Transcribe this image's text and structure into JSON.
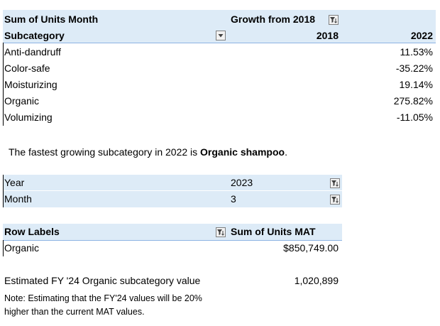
{
  "pivot1": {
    "header_value": "Sum of Units Month",
    "header_column": "Growth from 2018",
    "row_label": "Subcategory",
    "col_2018": "2018",
    "col_2022": "2022",
    "rows": [
      {
        "name": "Anti-dandruff",
        "value": "11.53%"
      },
      {
        "name": "Color-safe",
        "value": "-35.22%"
      },
      {
        "name": "Moisturizing",
        "value": "19.14%"
      },
      {
        "name": "Organic",
        "value": "275.82%"
      },
      {
        "name": "Volumizing",
        "value": "-11.05%"
      }
    ]
  },
  "sentence": {
    "prefix": "The fastest growing subcategory in 2022 is ",
    "highlight": "Organic shampoo",
    "suffix": "."
  },
  "filters": {
    "year_label": "Year",
    "year_value": "2023",
    "month_label": "Month",
    "month_value": "3"
  },
  "pivot2": {
    "row_labels": "Row Labels",
    "sum_header": "Sum of Units MAT",
    "row_name": "Organic",
    "row_value": "$850,749.00"
  },
  "estimate": {
    "label": "Estimated FY '24 Organic subcategory value",
    "value": "1,020,899",
    "note_line1": "Note: Estimating that the FY'24 values will be 20%",
    "note_line2": "higher than the current MAT values."
  }
}
